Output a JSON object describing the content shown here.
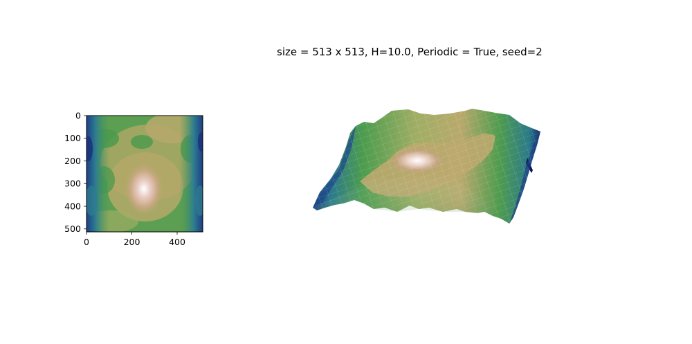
{
  "figure": {
    "title": "size = 513 x 513, H=10.0, Periodic = True, seed=2"
  },
  "chart_data": [
    {
      "type": "heatmap",
      "title": "",
      "xlabel": "",
      "ylabel": "",
      "xlim": [
        0,
        513
      ],
      "ylim": [
        513,
        0
      ],
      "xticks": [
        0,
        200,
        400
      ],
      "yticks": [
        0,
        100,
        200,
        300,
        400,
        500
      ],
      "grid": false,
      "colormap": "gist_earth",
      "colors": {
        "low": "#0d1b73",
        "mid_low": "#2f7e8f",
        "mid": "#4a9a4c",
        "mid_high": "#b5a86a",
        "high": "#f6eeee"
      }
    },
    {
      "type": "surface",
      "title": "size = 513 x 513, H=10.0, Periodic = True, seed=2",
      "xlim": [
        0,
        513
      ],
      "ylim": [
        0,
        513
      ],
      "axes_visible": false,
      "colormap": "gist_earth"
    }
  ]
}
